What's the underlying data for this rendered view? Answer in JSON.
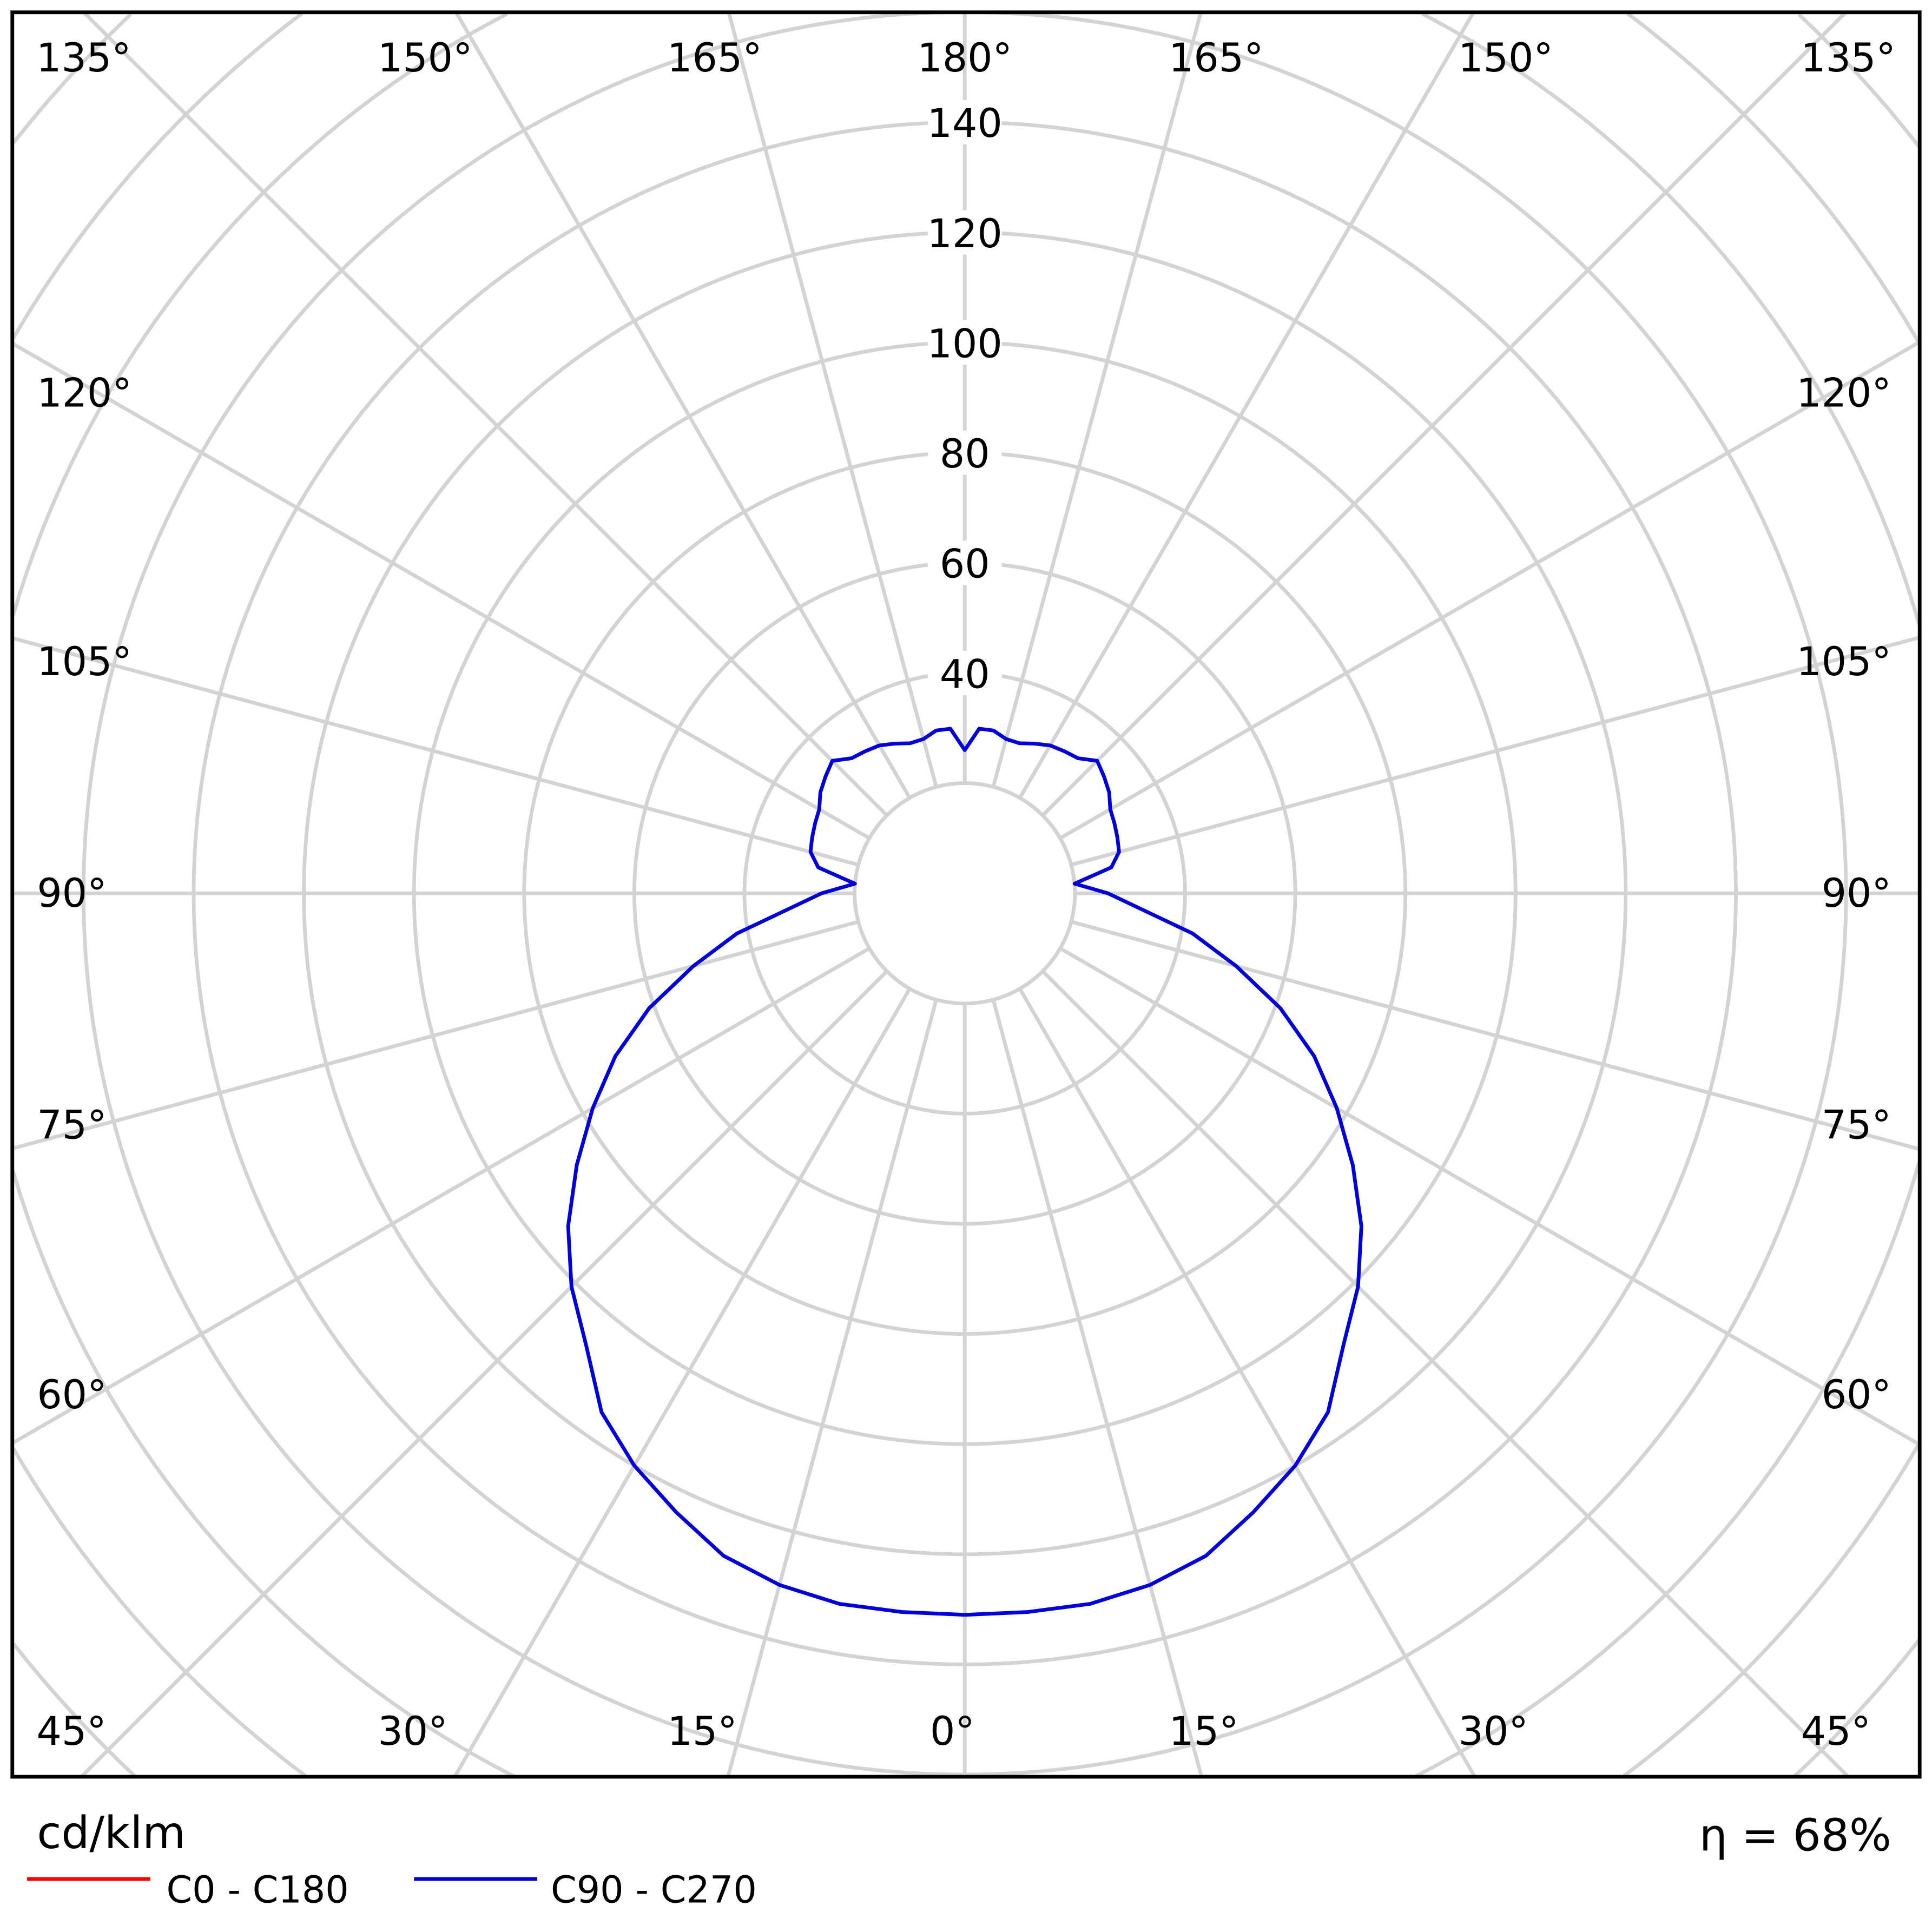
{
  "chart_data": {
    "type": "polar-line",
    "unit_label": "cd/klm",
    "efficiency_label": "η = 68%",
    "radial_ticks": [
      40,
      60,
      80,
      100,
      120,
      140
    ],
    "radial_range": [
      20,
      140
    ],
    "grid": true,
    "angle_labels": {
      "top": [
        "135°",
        "150°",
        "165°",
        "180°",
        "165°",
        "150°",
        "135°"
      ],
      "left": [
        "120°",
        "105°",
        "90°",
        "75°",
        "60°"
      ],
      "right": [
        "120°",
        "105°",
        "90°",
        "75°",
        "60°"
      ],
      "bottom": [
        "45°",
        "30°",
        "15°",
        "0°",
        "15°",
        "30°",
        "45°"
      ]
    },
    "legend": [
      {
        "name": "C0 - C180",
        "color": "#ff0000"
      },
      {
        "name": "C90 - C270",
        "color": "#0000dd"
      }
    ],
    "series": [
      {
        "name": "C0 - C180",
        "color": "#ff0000",
        "gamma": [],
        "values": []
      },
      {
        "name": "C90 - C270",
        "color": "#0000dd",
        "symmetric": true,
        "gamma": [
          0,
          5,
          10,
          15,
          20,
          25,
          30,
          35,
          40,
          45,
          50,
          55,
          60,
          65,
          70,
          75,
          80,
          85,
          90,
          95,
          100,
          105,
          110,
          115,
          120,
          125,
          130,
          135,
          140,
          145,
          150,
          155,
          160,
          165,
          170,
          175,
          180
        ],
        "values": [
          131,
          131,
          131,
          130,
          128,
          124,
          120,
          115,
          107,
          101,
          94,
          86,
          78,
          70,
          61,
          51,
          42,
          32,
          26,
          20,
          27,
          29,
          29.5,
          30,
          30.5,
          32,
          33,
          34,
          32,
          31.5,
          31,
          30,
          29,
          29,
          30,
          30,
          26
        ]
      }
    ]
  }
}
